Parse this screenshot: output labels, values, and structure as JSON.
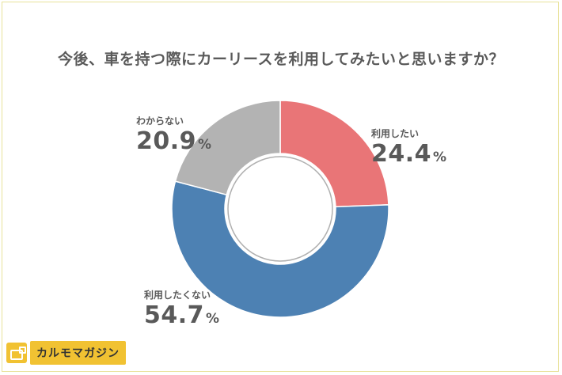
{
  "chart_data": {
    "type": "pie",
    "title": "今後、車を持つ際にカーリースを利用してみたいと思いますか？",
    "slices": [
      {
        "label": "利用したい",
        "value": 24.4,
        "color": "#e97577"
      },
      {
        "label": "利用したくない",
        "value": 54.7,
        "color": "#4d81b3"
      },
      {
        "label": "わからない",
        "value": 20.9,
        "color": "#b3b3b3"
      }
    ],
    "unit": "%"
  },
  "labels": [
    {
      "name": "利用したい",
      "value": "24.4",
      "unit": "%"
    },
    {
      "name": "利用したくない",
      "value": "54.7",
      "unit": "%"
    },
    {
      "name": "わからない",
      "value": "20.9",
      "unit": "%"
    }
  ],
  "brand": {
    "name": "カルモマガジン",
    "color": "#f1c232",
    "icon": "truck-icon"
  }
}
